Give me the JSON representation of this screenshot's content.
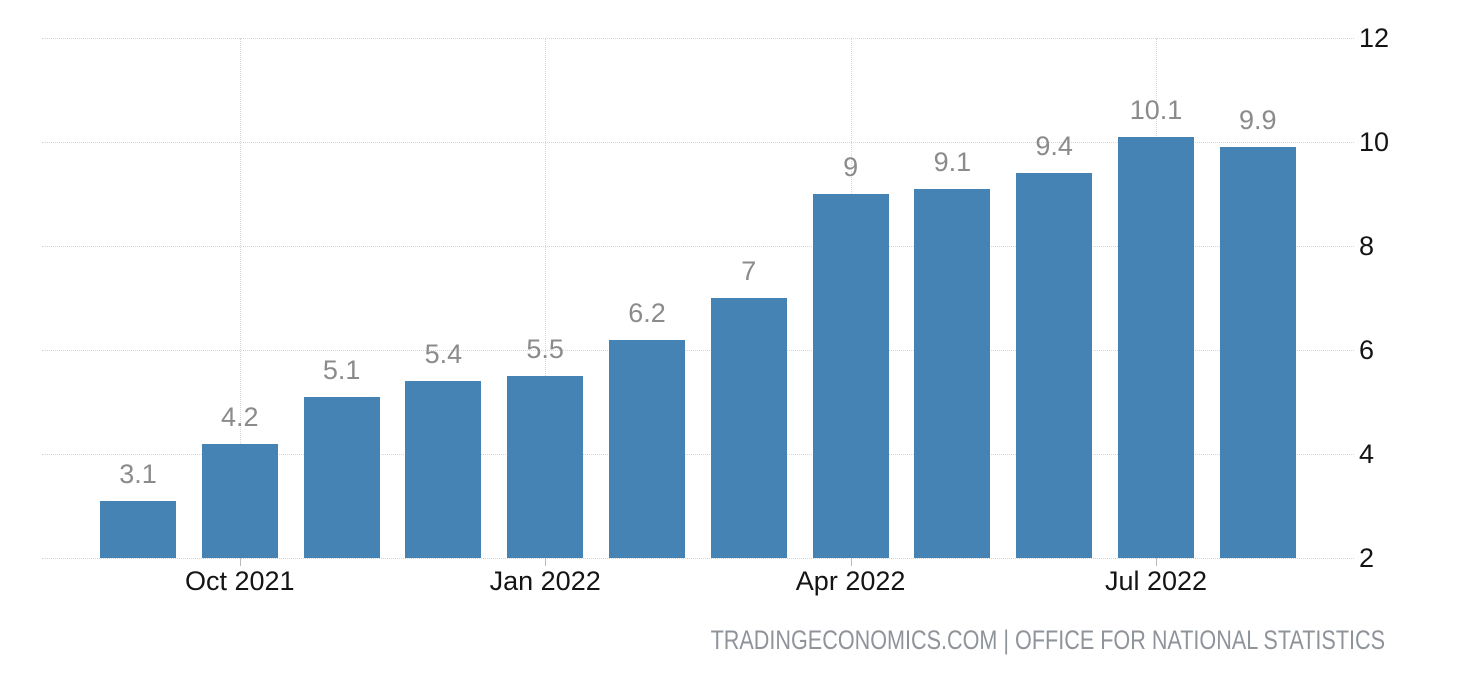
{
  "chart_data": {
    "type": "bar",
    "title": "",
    "values": [
      3.1,
      4.2,
      5.1,
      5.4,
      5.5,
      6.2,
      7,
      9,
      9.1,
      9.4,
      10.1,
      9.9
    ],
    "bar_labels": [
      "3.1",
      "4.2",
      "5.1",
      "5.4",
      "5.5",
      "6.2",
      "7",
      "9",
      "9.1",
      "9.4",
      "10.1",
      "9.9"
    ],
    "x_ticks": [
      {
        "index": 1,
        "label": "Oct 2021"
      },
      {
        "index": 4,
        "label": "Jan 2022"
      },
      {
        "index": 7,
        "label": "Apr 2022"
      },
      {
        "index": 10,
        "label": "Jul 2022"
      }
    ],
    "y_ticks": [
      2,
      4,
      6,
      8,
      10,
      12
    ],
    "ylim": [
      2,
      12
    ],
    "y_axis_side": "right",
    "grid": "dotted horizontal at y ticks, dotted vertical at x ticks",
    "legend": "none",
    "bar_color": "#4583b5",
    "value_label_color": "#8b8b8b",
    "axis_label_color": "#141414",
    "gridline_color": "#d6d6d6",
    "source": "TRADINGECONOMICS.COM | OFFICE FOR NATIONAL STATISTICS"
  }
}
